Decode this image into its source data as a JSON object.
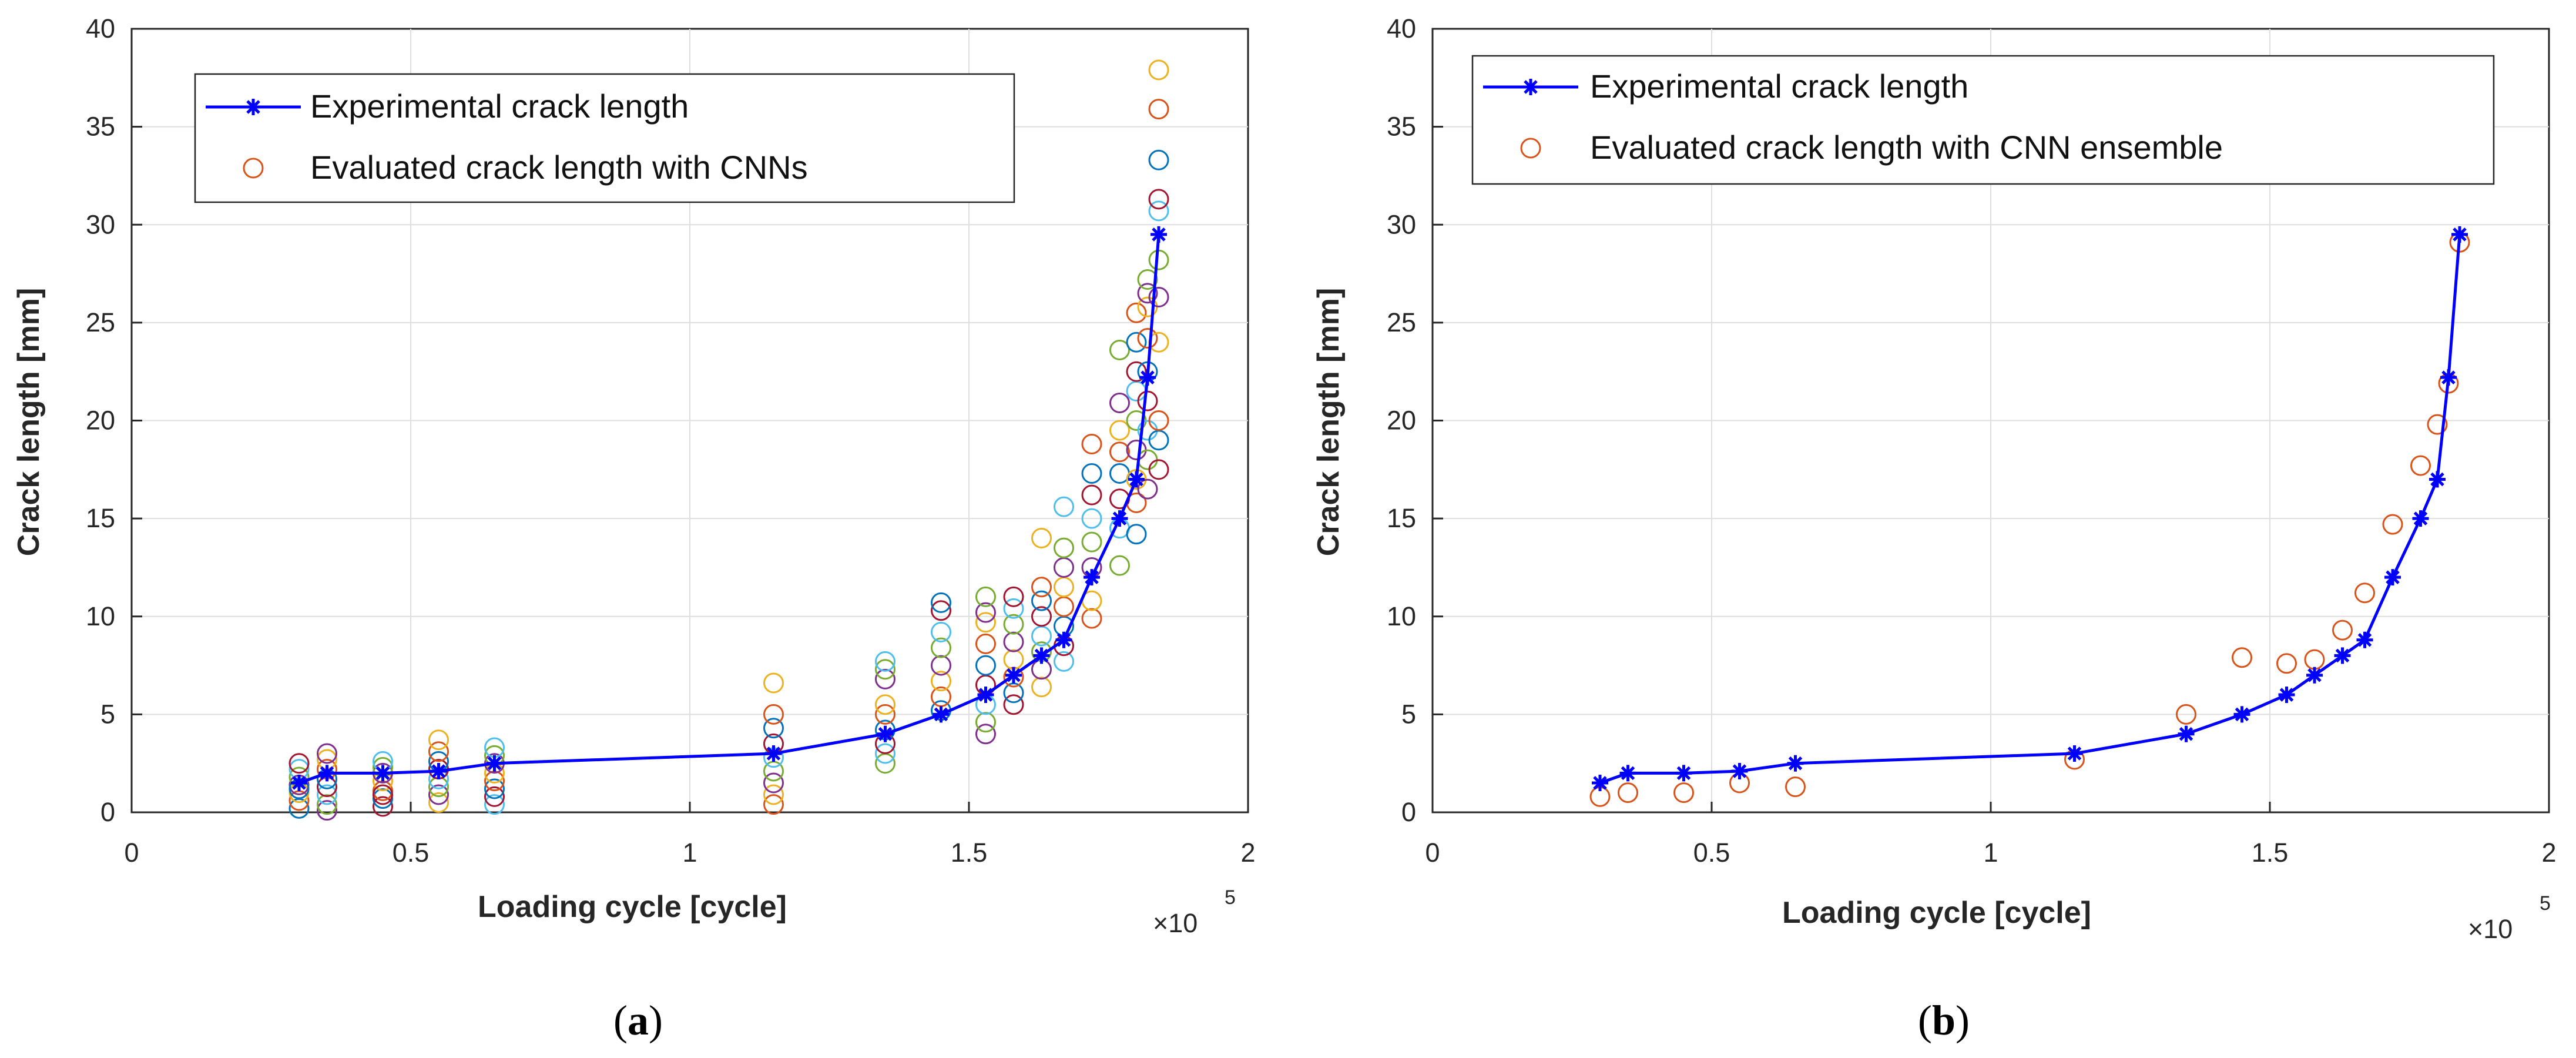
{
  "chart_data": [
    {
      "id": "a",
      "type": "scatter+line",
      "caption_open": "(",
      "caption_letter": "a",
      "caption_close": ")",
      "xlabel": "Loading cycle [cycle]",
      "ylabel": "Crack length [mm]",
      "xlim": [
        0,
        200000
      ],
      "ylim": [
        0,
        40
      ],
      "x_ticks": [
        0,
        50000,
        100000,
        150000,
        200000
      ],
      "x_tick_labels": [
        "0",
        "0.5",
        "1",
        "1.5",
        "2"
      ],
      "y_ticks": [
        0,
        5,
        10,
        15,
        20,
        25,
        30,
        35,
        40
      ],
      "y_tick_labels": [
        "0",
        "5",
        "10",
        "15",
        "20",
        "25",
        "30",
        "35",
        "40"
      ],
      "x_exponent_base": "×10",
      "x_exponent_power": "5",
      "grid": true,
      "legend_position": "top-left",
      "legend": [
        {
          "label": "Experimental crack length",
          "marker": "asterisk-line",
          "color": "#0000FF"
        },
        {
          "label": "Evaluated crack length with CNNs",
          "marker": "circle",
          "color": "#D95319"
        }
      ],
      "experimental": {
        "x": [
          30000,
          35000,
          45000,
          55000,
          65000,
          115000,
          135000,
          145000,
          153000,
          158000,
          163000,
          167000,
          172000,
          177000,
          180000,
          182000,
          184000
        ],
        "y": [
          1.5,
          2.0,
          2.0,
          2.1,
          2.5,
          3.0,
          4.0,
          5.0,
          6.0,
          7.0,
          8.0,
          8.8,
          12.0,
          15.0,
          17.0,
          22.2,
          29.5
        ]
      },
      "cnn_colors": [
        "#0072BD",
        "#D95319",
        "#EDB120",
        "#7E2F8E",
        "#77AC30",
        "#4DBEEE",
        "#A2142F"
      ],
      "cnn_groups": [
        {
          "x": 30000,
          "y": [
            0.2,
            0.6,
            1.0,
            1.4,
            1.8,
            2.2,
            2.5,
            1.2
          ]
        },
        {
          "x": 35000,
          "y": [
            0.1,
            0.4,
            0.9,
            1.3,
            1.7,
            2.2,
            2.7,
            3.0
          ]
        },
        {
          "x": 45000,
          "y": [
            0.3,
            0.7,
            1.1,
            1.6,
            2.0,
            2.3,
            2.6,
            0.9
          ]
        },
        {
          "x": 55000,
          "y": [
            0.5,
            0.9,
            1.3,
            1.7,
            2.2,
            2.6,
            3.1,
            3.7
          ]
        },
        {
          "x": 65000,
          "y": [
            0.4,
            0.8,
            1.2,
            1.6,
            2.0,
            2.5,
            2.9,
            3.3
          ]
        },
        {
          "x": 115000,
          "y": [
            0.4,
            0.9,
            1.5,
            2.1,
            2.8,
            3.5,
            4.3,
            5.0,
            6.6
          ]
        },
        {
          "x": 135000,
          "y": [
            2.5,
            3.0,
            3.5,
            4.2,
            5.0,
            5.5,
            6.8,
            7.3,
            7.7
          ]
        },
        {
          "x": 145000,
          "y": [
            5.2,
            5.9,
            6.7,
            7.5,
            8.4,
            9.2,
            10.3,
            10.7
          ]
        },
        {
          "x": 153000,
          "y": [
            4.0,
            4.6,
            5.5,
            6.5,
            7.5,
            8.6,
            9.7,
            10.2,
            11.0
          ]
        },
        {
          "x": 158000,
          "y": [
            5.5,
            6.1,
            6.9,
            7.8,
            8.7,
            9.6,
            10.4,
            11.0
          ]
        },
        {
          "x": 163000,
          "y": [
            6.4,
            7.3,
            8.2,
            9.0,
            10.0,
            10.8,
            11.5,
            14.0
          ]
        },
        {
          "x": 167000,
          "y": [
            7.7,
            8.5,
            9.5,
            10.5,
            11.5,
            12.5,
            13.5,
            15.6
          ]
        },
        {
          "x": 172000,
          "y": [
            9.9,
            10.8,
            12.5,
            13.8,
            15.0,
            16.2,
            17.3,
            18.8
          ]
        },
        {
          "x": 177000,
          "y": [
            12.6,
            14.5,
            16.0,
            17.3,
            18.4,
            19.5,
            20.9,
            23.6
          ]
        },
        {
          "x": 180000,
          "y": [
            14.2,
            15.8,
            17.0,
            18.5,
            20.0,
            21.5,
            22.5,
            24.0,
            25.5
          ]
        },
        {
          "x": 182000,
          "y": [
            16.5,
            18.0,
            19.5,
            21.0,
            22.5,
            24.2,
            25.8,
            26.5,
            27.2
          ]
        },
        {
          "x": 184000,
          "y": [
            17.5,
            19.0,
            20.0,
            24.0,
            26.3,
            28.2,
            30.7,
            31.3,
            33.3,
            35.9,
            37.9
          ]
        }
      ]
    },
    {
      "id": "b",
      "type": "scatter+line",
      "caption_open": "(",
      "caption_letter": "b",
      "caption_close": ")",
      "xlabel": "Loading cycle [cycle]",
      "ylabel": "Crack length [mm]",
      "xlim": [
        0,
        200000
      ],
      "ylim": [
        0,
        40
      ],
      "x_ticks": [
        0,
        50000,
        100000,
        150000,
        200000
      ],
      "x_tick_labels": [
        "0",
        "0.5",
        "1",
        "1.5",
        "2"
      ],
      "y_ticks": [
        0,
        5,
        10,
        15,
        20,
        25,
        30,
        35,
        40
      ],
      "y_tick_labels": [
        "0",
        "5",
        "10",
        "15",
        "20",
        "25",
        "30",
        "35",
        "40"
      ],
      "x_exponent_base": "×10",
      "x_exponent_power": "5",
      "grid": true,
      "legend_position": "top-left",
      "legend": [
        {
          "label": "Experimental crack length",
          "marker": "asterisk-line",
          "color": "#0000FF"
        },
        {
          "label": "Evaluated crack length with CNN ensemble",
          "marker": "circle",
          "color": "#D95319"
        }
      ],
      "experimental": {
        "x": [
          30000,
          35000,
          45000,
          55000,
          65000,
          115000,
          135000,
          145000,
          153000,
          158000,
          163000,
          167000,
          172000,
          177000,
          180000,
          182000,
          184000
        ],
        "y": [
          1.5,
          2.0,
          2.0,
          2.1,
          2.5,
          3.0,
          4.0,
          5.0,
          6.0,
          7.0,
          8.0,
          8.8,
          12.0,
          15.0,
          17.0,
          22.2,
          29.5
        ]
      },
      "ensemble": {
        "x": [
          30000,
          35000,
          45000,
          55000,
          65000,
          115000,
          135000,
          145000,
          153000,
          158000,
          163000,
          167000,
          172000,
          177000,
          180000,
          182000,
          184000
        ],
        "y": [
          0.8,
          1.0,
          1.0,
          1.5,
          1.3,
          2.7,
          5.0,
          7.9,
          7.6,
          7.8,
          9.3,
          11.2,
          14.7,
          17.7,
          19.8,
          21.9,
          29.1
        ]
      }
    }
  ]
}
